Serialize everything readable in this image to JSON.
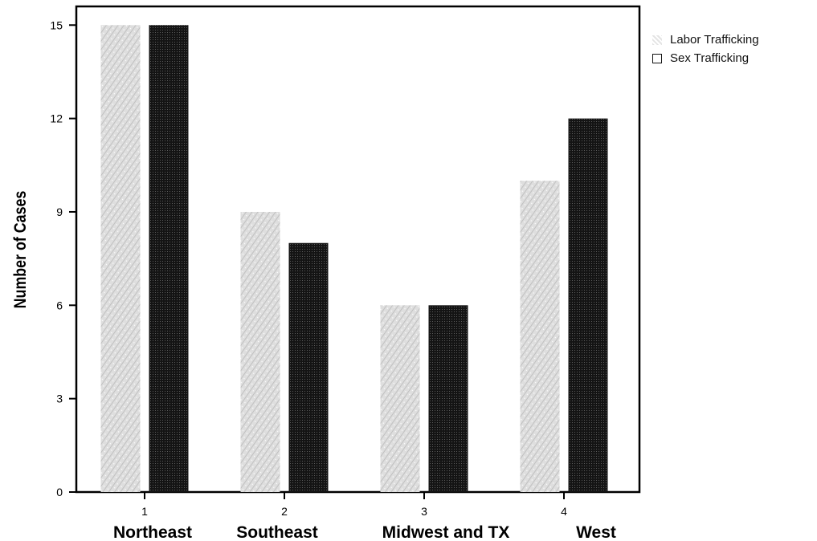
{
  "chart_data": {
    "type": "bar",
    "title": "",
    "xlabel": "",
    "ylabel": "Number of Cases",
    "ylim": [
      0,
      15.6
    ],
    "yticks": [
      0,
      3,
      6,
      9,
      12,
      15
    ],
    "categories": [
      "1",
      "2",
      "3",
      "4"
    ],
    "category_names": [
      "Northeast",
      "Southeast",
      "Midwest and TX",
      "West"
    ],
    "series": [
      {
        "name": "Labor Trafficking",
        "values": [
          15,
          9,
          6,
          10
        ],
        "color": "#cfcfcf"
      },
      {
        "name": "Sex Trafficking",
        "values": [
          15,
          8,
          6,
          12
        ],
        "color": "#161616"
      }
    ],
    "legend_position": "top-right",
    "grid": false
  }
}
